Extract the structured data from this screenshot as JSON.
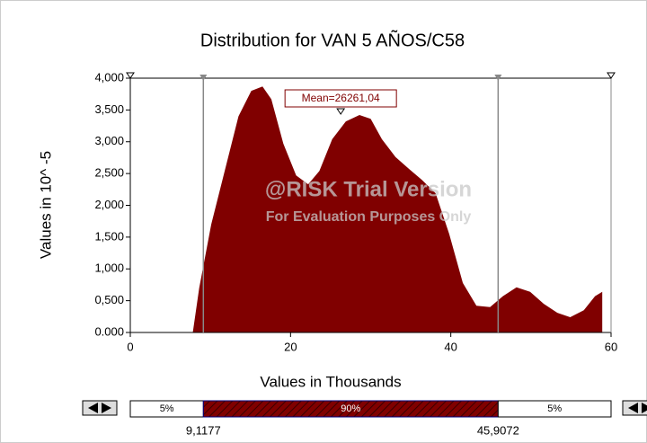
{
  "chart_data": {
    "type": "area",
    "title": "Distribution for VAN 5 AÑOS/C58",
    "y_label": "Values in 10^ -5",
    "x_label": "Values in Thousands",
    "color": "#800000",
    "x": [
      7.8,
      8.6,
      10.1,
      11.8,
      13.5,
      15.1,
      16.5,
      17.6,
      19.1,
      20.7,
      22.2,
      23.6,
      25.2,
      26.9,
      28.6,
      30.0,
      31.4,
      33.1,
      34.8,
      36.4,
      38.1,
      39.8,
      41.5,
      43.2,
      44.9,
      46.5,
      48.2,
      49.9,
      51.6,
      53.3,
      54.9,
      56.6,
      58.0,
      58.9
    ],
    "values": [
      0,
      0.7,
      1.7,
      2.55,
      3.4,
      3.8,
      3.87,
      3.67,
      2.97,
      2.47,
      2.33,
      2.54,
      3.04,
      3.32,
      3.42,
      3.36,
      3.04,
      2.76,
      2.57,
      2.4,
      2.19,
      1.55,
      0.78,
      0.42,
      0.4,
      0.57,
      0.71,
      0.64,
      0.45,
      0.31,
      0.24,
      0.35,
      0.57,
      0.64
    ],
    "xlim": [
      0,
      60
    ],
    "xticks": [
      0,
      20,
      40,
      60
    ],
    "ylim": [
      0,
      4
    ],
    "yticks": [
      {
        "value": 0,
        "label": "0.000"
      },
      {
        "value": 0.5,
        "label": "0,500"
      },
      {
        "value": 1,
        "label": "1,000"
      },
      {
        "value": 1.5,
        "label": "1,500"
      },
      {
        "value": 2,
        "label": "2,000"
      },
      {
        "value": 2.5,
        "label": "2,500"
      },
      {
        "value": 3,
        "label": "3,000"
      },
      {
        "value": 3.5,
        "label": "3,500"
      },
      {
        "value": 4,
        "label": "4,000"
      }
    ],
    "mean": {
      "value": 26.26104,
      "label": "Mean=26261,04"
    },
    "delimiters": [
      {
        "value": 9.1177,
        "label": "9,1177"
      },
      {
        "value": 45.9072,
        "label": "45,9072"
      }
    ],
    "percentages": [
      {
        "value": 5,
        "label": "5%"
      },
      {
        "value": 90,
        "label": "90%"
      },
      {
        "value": 5,
        "label": "5%"
      }
    ],
    "watermark": [
      "@RISK Trial Version",
      "For Evaluation Purposes Only"
    ]
  }
}
